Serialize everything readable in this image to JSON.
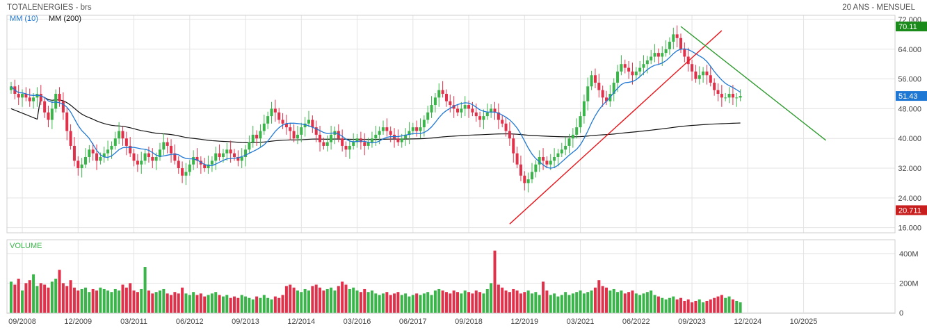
{
  "header": {
    "title": "TOTALENERGIES - brs",
    "period": "20 ANS - MENSUEL"
  },
  "legend": {
    "ma10_label": "MM (10)",
    "ma200_label": "MM (200)"
  },
  "volume": {
    "label": "VOLUME",
    "ticks": [
      {
        "value": 0,
        "label": "0"
      },
      {
        "value": 200,
        "label": "200M"
      },
      {
        "value": 400,
        "label": "400M"
      }
    ],
    "ylim": [
      0,
      470
    ]
  },
  "colors": {
    "up": "#3ab54a",
    "down": "#e0304a",
    "ma10": "#1f77d4",
    "ma200": "#111111",
    "support": "#e8151b",
    "resistance": "#2e9a2e",
    "badge_high": "#1a8a1a",
    "badge_last": "#1f77d4",
    "badge_low": "#c81e1e",
    "grid": "#e3e3e3",
    "volume_label": "#3ab54a"
  },
  "chart_data": {
    "type": "candlestick",
    "x_labels": [
      "09/2008",
      "12/2009",
      "03/2011",
      "06/2012",
      "09/2013",
      "12/2014",
      "03/2016",
      "06/2017",
      "09/2018",
      "12/2019",
      "03/2021",
      "06/2022",
      "09/2023",
      "12/2024",
      "10/2025"
    ],
    "x_label_index": [
      3,
      18,
      33,
      48,
      63,
      78,
      93,
      108,
      123,
      138,
      153,
      168,
      183,
      198,
      213
    ],
    "ylim": [
      15,
      72
    ],
    "y_ticks": [
      16,
      24,
      32,
      40,
      48,
      56,
      64,
      72
    ],
    "y_tick_labels": [
      "16.000",
      "24.000",
      "32.000",
      "40.000",
      "48.000",
      "56.000",
      "64.000",
      "72.000"
    ],
    "badges": {
      "high": "70.11",
      "last": "51.43",
      "low": "20.711"
    },
    "closes": [
      54,
      52,
      51,
      52,
      51,
      50,
      51,
      52,
      50,
      47,
      45,
      48,
      52,
      50,
      47,
      42,
      38,
      34,
      32,
      33,
      35,
      37,
      36,
      34,
      35,
      36,
      37,
      38,
      40,
      42,
      40,
      38,
      36,
      34,
      33,
      34,
      36,
      35,
      34,
      35,
      37,
      39,
      38,
      36,
      34,
      32,
      30,
      31,
      33,
      35,
      34,
      33,
      32,
      33,
      34,
      36,
      35,
      36,
      37,
      36,
      35,
      34,
      35,
      37,
      39,
      41,
      40,
      42,
      44,
      46,
      48,
      47,
      45,
      44,
      43,
      42,
      40,
      41,
      43,
      44,
      45,
      43,
      41,
      39,
      38,
      39,
      41,
      42,
      40,
      38,
      37,
      38,
      39,
      40,
      39,
      38,
      39,
      40,
      41,
      42,
      43,
      42,
      41,
      40,
      39,
      40,
      41,
      42,
      43,
      42,
      43,
      45,
      47,
      49,
      51,
      53,
      52,
      50,
      49,
      48,
      47,
      48,
      49,
      48,
      47,
      46,
      45,
      46,
      47,
      48,
      47,
      45,
      44,
      42,
      40,
      36,
      33,
      30,
      28,
      29,
      31,
      33,
      35,
      34,
      33,
      34,
      35,
      36,
      37,
      38,
      40,
      41,
      43,
      46,
      50,
      54,
      57,
      55,
      53,
      51,
      50,
      52,
      55,
      58,
      60,
      59,
      58,
      57,
      58,
      59,
      60,
      61,
      62,
      63,
      62,
      63,
      64,
      66,
      68,
      67,
      64,
      62,
      60,
      58,
      56,
      57,
      58,
      57,
      55,
      53,
      52,
      51,
      51,
      52,
      51,
      51,
      51.43
    ],
    "ma10_window": 10,
    "ma200_note": "long-term moving average",
    "volumes_m": [
      210,
      190,
      230,
      150,
      200,
      220,
      260,
      180,
      200,
      190,
      170,
      210,
      230,
      290,
      200,
      180,
      220,
      170,
      150,
      160,
      170,
      140,
      160,
      150,
      170,
      160,
      150,
      140,
      160,
      150,
      190,
      170,
      200,
      150,
      140,
      160,
      310,
      150,
      130,
      140,
      150,
      160,
      130,
      120,
      140,
      130,
      170,
      130,
      120,
      140,
      120,
      130,
      110,
      120,
      130,
      140,
      120,
      110,
      120,
      100,
      110,
      100,
      120,
      110,
      100,
      90,
      110,
      100,
      120,
      100,
      90,
      110,
      100,
      120,
      180,
      190,
      170,
      150,
      140,
      160,
      150,
      180,
      190,
      170,
      150,
      160,
      170,
      150,
      180,
      210,
      190,
      160,
      170,
      150,
      140,
      160,
      140,
      150,
      130,
      120,
      130,
      140,
      120,
      130,
      140,
      120,
      130,
      110,
      120,
      130,
      120,
      130,
      140,
      120,
      150,
      160,
      150,
      140,
      130,
      150,
      140,
      130,
      150,
      140,
      130,
      150,
      140,
      130,
      160,
      200,
      420,
      190,
      170,
      150,
      140,
      160,
      150,
      130,
      140,
      150,
      130,
      140,
      120,
      210,
      150,
      120,
      130,
      110,
      120,
      140,
      120,
      130,
      140,
      150,
      130,
      140,
      150,
      170,
      220,
      180,
      170,
      150,
      160,
      140,
      150,
      130,
      140,
      150,
      130,
      120,
      130,
      140,
      150,
      120,
      110,
      100,
      90,
      100,
      110,
      90,
      100,
      80,
      90,
      70,
      80,
      90,
      70,
      80,
      90,
      100,
      110,
      120,
      100,
      110,
      90,
      80,
      70,
      60,
      50
    ]
  },
  "trendlines": [
    {
      "name": "support",
      "from": [
        134,
        17
      ],
      "to": [
        191,
        69
      ]
    },
    {
      "name": "resistance",
      "from": [
        180,
        70.11
      ],
      "to": [
        219,
        39.5
      ]
    }
  ]
}
